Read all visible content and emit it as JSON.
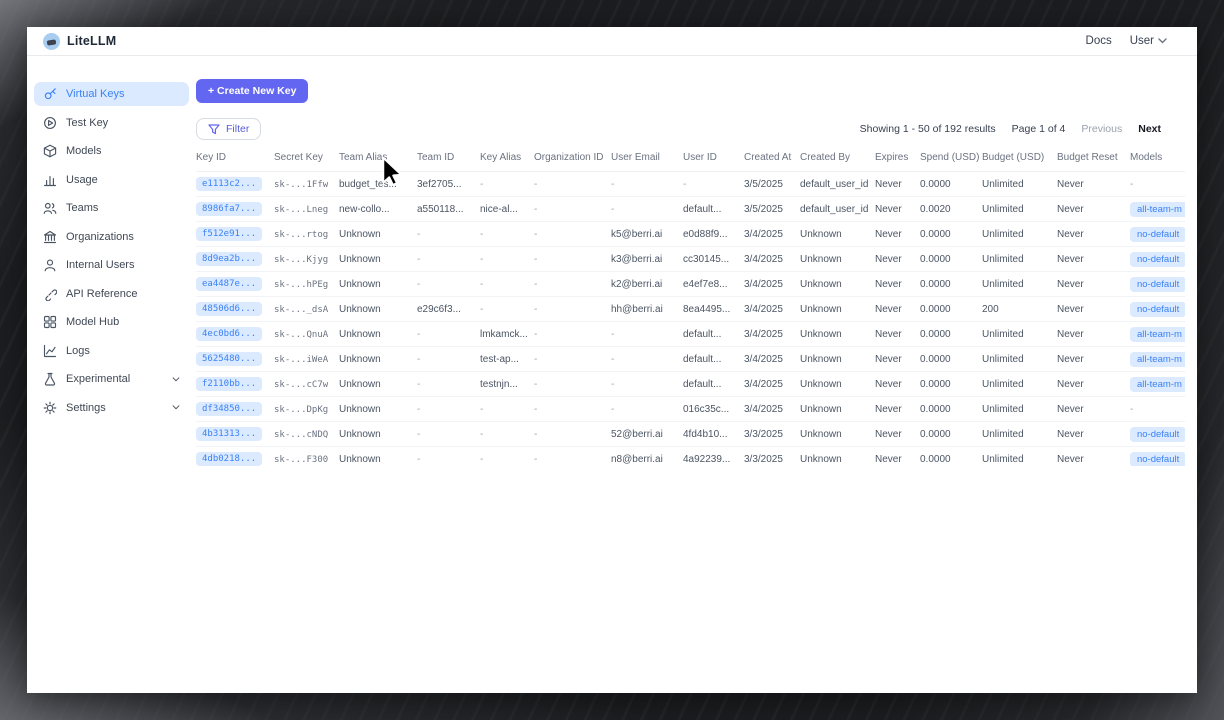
{
  "header": {
    "brand": "LiteLLM",
    "docs_label": "Docs",
    "user_label": "User"
  },
  "sidebar": {
    "items": [
      {
        "label": "Virtual Keys",
        "icon": "key",
        "active": true,
        "chevron": false
      },
      {
        "label": "Test Key",
        "icon": "play",
        "active": false,
        "chevron": false
      },
      {
        "label": "Models",
        "icon": "cube",
        "active": false,
        "chevron": false
      },
      {
        "label": "Usage",
        "icon": "bar-chart",
        "active": false,
        "chevron": false
      },
      {
        "label": "Teams",
        "icon": "users",
        "active": false,
        "chevron": false
      },
      {
        "label": "Organizations",
        "icon": "bank",
        "active": false,
        "chevron": false
      },
      {
        "label": "Internal Users",
        "icon": "user",
        "active": false,
        "chevron": false
      },
      {
        "label": "API Reference",
        "icon": "link",
        "active": false,
        "chevron": false
      },
      {
        "label": "Model Hub",
        "icon": "grid",
        "active": false,
        "chevron": false
      },
      {
        "label": "Logs",
        "icon": "trend",
        "active": false,
        "chevron": false
      },
      {
        "label": "Experimental",
        "icon": "flask",
        "active": false,
        "chevron": true
      },
      {
        "label": "Settings",
        "icon": "gear",
        "active": false,
        "chevron": true
      }
    ]
  },
  "toolbar": {
    "create_button_label": "+ Create New Key",
    "filter_button_label": "Filter"
  },
  "pagination": {
    "showing": "Showing 1 - 50 of 192 results",
    "page": "Page 1 of 4",
    "previous_label": "Previous",
    "next_label": "Next"
  },
  "table": {
    "columns": [
      {
        "label": "Key ID",
        "key": "key_id",
        "type": "pill"
      },
      {
        "label": "Secret Key",
        "key": "secret_key",
        "type": "mono"
      },
      {
        "label": "Team Alias",
        "key": "team_alias",
        "type": "text"
      },
      {
        "label": "Team ID",
        "key": "team_id",
        "type": "text"
      },
      {
        "label": "Key Alias",
        "key": "key_alias",
        "type": "text"
      },
      {
        "label": "Organization ID",
        "key": "org_id",
        "type": "text"
      },
      {
        "label": "User Email",
        "key": "user_email",
        "type": "text"
      },
      {
        "label": "User ID",
        "key": "user_id",
        "type": "text"
      },
      {
        "label": "Created At",
        "key": "created_at",
        "type": "text"
      },
      {
        "label": "Created By",
        "key": "created_by",
        "type": "text"
      },
      {
        "label": "Expires",
        "key": "expires",
        "type": "text"
      },
      {
        "label": "Spend (USD)",
        "key": "spend",
        "type": "text"
      },
      {
        "label": "Budget (USD)",
        "key": "budget",
        "type": "text"
      },
      {
        "label": "Budget Reset",
        "key": "budget_reset",
        "type": "text"
      },
      {
        "label": "Models",
        "key": "models",
        "type": "badge"
      }
    ],
    "rows": [
      {
        "key_id": "e1113c2...",
        "secret_key": "sk-...1Ffw",
        "team_alias": "budget_tes...",
        "team_id": "3ef2705...",
        "key_alias": "-",
        "org_id": "-",
        "user_email": "-",
        "user_id": "-",
        "created_at": "3/5/2025",
        "created_by": "default_user_id",
        "expires": "Never",
        "spend": "0.0000",
        "budget": "Unlimited",
        "budget_reset": "Never",
        "models": "-"
      },
      {
        "key_id": "8986fa7...",
        "secret_key": "sk-...Lneg",
        "team_alias": "new-collo...",
        "team_id": "a550118...",
        "key_alias": "nice-al...",
        "org_id": "-",
        "user_email": "-",
        "user_id": "default...",
        "created_at": "3/5/2025",
        "created_by": "default_user_id",
        "expires": "Never",
        "spend": "0.0020",
        "budget": "Unlimited",
        "budget_reset": "Never",
        "models": "all-team-m"
      },
      {
        "key_id": "f512e91...",
        "secret_key": "sk-...rtog",
        "team_alias": "Unknown",
        "team_id": "-",
        "key_alias": "-",
        "org_id": "-",
        "user_email": "k5@berri.ai",
        "user_id": "e0d88f9...",
        "created_at": "3/4/2025",
        "created_by": "Unknown",
        "expires": "Never",
        "spend": "0.0000",
        "budget": "Unlimited",
        "budget_reset": "Never",
        "models": "no-default"
      },
      {
        "key_id": "8d9ea2b...",
        "secret_key": "sk-...Kjyg",
        "team_alias": "Unknown",
        "team_id": "-",
        "key_alias": "-",
        "org_id": "-",
        "user_email": "k3@berri.ai",
        "user_id": "cc30145...",
        "created_at": "3/4/2025",
        "created_by": "Unknown",
        "expires": "Never",
        "spend": "0.0000",
        "budget": "Unlimited",
        "budget_reset": "Never",
        "models": "no-default"
      },
      {
        "key_id": "ea4487e...",
        "secret_key": "sk-...hPEg",
        "team_alias": "Unknown",
        "team_id": "-",
        "key_alias": "-",
        "org_id": "-",
        "user_email": "k2@berri.ai",
        "user_id": "e4ef7e8...",
        "created_at": "3/4/2025",
        "created_by": "Unknown",
        "expires": "Never",
        "spend": "0.0000",
        "budget": "Unlimited",
        "budget_reset": "Never",
        "models": "no-default"
      },
      {
        "key_id": "48506d6...",
        "secret_key": "sk-..._dsA",
        "team_alias": "Unknown",
        "team_id": "e29c6f3...",
        "key_alias": "-",
        "org_id": "-",
        "user_email": "hh@berri.ai",
        "user_id": "8ea4495...",
        "created_at": "3/4/2025",
        "created_by": "Unknown",
        "expires": "Never",
        "spend": "0.0000",
        "budget": "200",
        "budget_reset": "Never",
        "models": "no-default"
      },
      {
        "key_id": "4ec0bd6...",
        "secret_key": "sk-...QnuA",
        "team_alias": "Unknown",
        "team_id": "-",
        "key_alias": "lmkamck...",
        "org_id": "-",
        "user_email": "-",
        "user_id": "default...",
        "created_at": "3/4/2025",
        "created_by": "Unknown",
        "expires": "Never",
        "spend": "0.0000",
        "budget": "Unlimited",
        "budget_reset": "Never",
        "models": "all-team-m"
      },
      {
        "key_id": "5625480...",
        "secret_key": "sk-...iWeA",
        "team_alias": "Unknown",
        "team_id": "-",
        "key_alias": "test-ap...",
        "org_id": "-",
        "user_email": "-",
        "user_id": "default...",
        "created_at": "3/4/2025",
        "created_by": "Unknown",
        "expires": "Never",
        "spend": "0.0000",
        "budget": "Unlimited",
        "budget_reset": "Never",
        "models": "all-team-m"
      },
      {
        "key_id": "f2110bb...",
        "secret_key": "sk-...cC7w",
        "team_alias": "Unknown",
        "team_id": "-",
        "key_alias": "testnjn...",
        "org_id": "-",
        "user_email": "-",
        "user_id": "default...",
        "created_at": "3/4/2025",
        "created_by": "Unknown",
        "expires": "Never",
        "spend": "0.0000",
        "budget": "Unlimited",
        "budget_reset": "Never",
        "models": "all-team-m"
      },
      {
        "key_id": "df34850...",
        "secret_key": "sk-...DpKg",
        "team_alias": "Unknown",
        "team_id": "-",
        "key_alias": "-",
        "org_id": "-",
        "user_email": "-",
        "user_id": "016c35c...",
        "created_at": "3/4/2025",
        "created_by": "Unknown",
        "expires": "Never",
        "spend": "0.0000",
        "budget": "Unlimited",
        "budget_reset": "Never",
        "models": "-"
      },
      {
        "key_id": "4b31313...",
        "secret_key": "sk-...cNDQ",
        "team_alias": "Unknown",
        "team_id": "-",
        "key_alias": "-",
        "org_id": "-",
        "user_email": "52@berri.ai",
        "user_id": "4fd4b10...",
        "created_at": "3/3/2025",
        "created_by": "Unknown",
        "expires": "Never",
        "spend": "0.0000",
        "budget": "Unlimited",
        "budget_reset": "Never",
        "models": "no-default"
      },
      {
        "key_id": "4db0218...",
        "secret_key": "sk-...F300",
        "team_alias": "Unknown",
        "team_id": "-",
        "key_alias": "-",
        "org_id": "-",
        "user_email": "n8@berri.ai",
        "user_id": "4a92239...",
        "created_at": "3/3/2025",
        "created_by": "Unknown",
        "expires": "Never",
        "spend": "0.0000",
        "budget": "Unlimited",
        "budget_reset": "Never",
        "models": "no-default"
      }
    ]
  },
  "colors": {
    "accent": "#6366f1",
    "pill_bg": "#dbeafe",
    "pill_text": "#3b82f6",
    "active_nav_bg": "#dbeafe",
    "active_nav_text": "#3b82f6"
  }
}
